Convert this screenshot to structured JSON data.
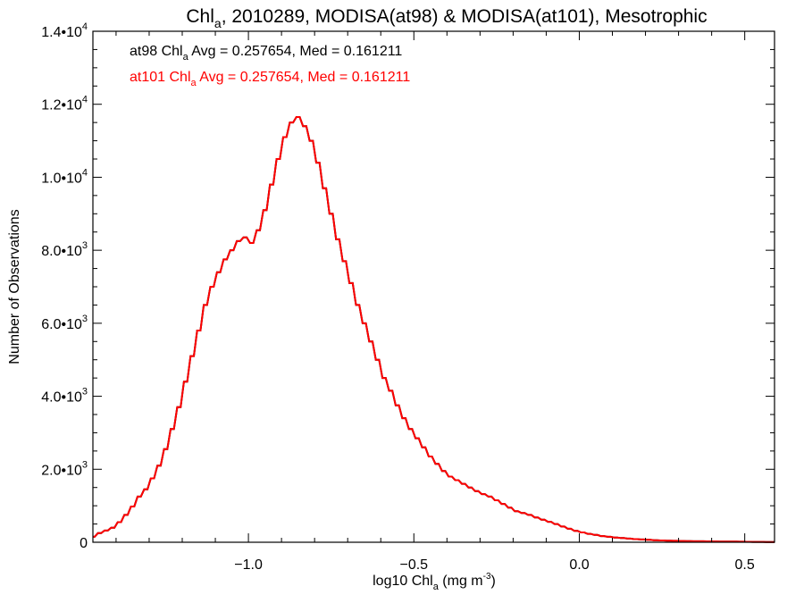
{
  "chart_data": {
    "type": "histogram-step",
    "title": {
      "pre": "Chl",
      "sub": "a",
      "post": ", 2010289, MODISA(at98) & MODISA(at101), Mesotrophic"
    },
    "xlabel": {
      "pre": "log10 Chl",
      "sub": "a",
      "post": " (mg m",
      "sup": "-3",
      "end": ")"
    },
    "ylabel": "Number of Observations",
    "xlim": [
      -1.47,
      0.59
    ],
    "ylim": [
      0,
      14000
    ],
    "x_ticks": [
      {
        "value": -1.0,
        "label": "−1.0"
      },
      {
        "value": -0.5,
        "label": "−0.5"
      },
      {
        "value": 0.0,
        "label": "0.0"
      },
      {
        "value": 0.5,
        "label": "0.5"
      }
    ],
    "y_ticks": [
      {
        "value": 0,
        "base": "0",
        "exp": ""
      },
      {
        "value": 2000,
        "base": "2.0•10",
        "exp": "3"
      },
      {
        "value": 4000,
        "base": "4.0•10",
        "exp": "3"
      },
      {
        "value": 6000,
        "base": "6.0•10",
        "exp": "3"
      },
      {
        "value": 8000,
        "base": "8.0•10",
        "exp": "3"
      },
      {
        "value": 10000,
        "base": "1.0•10",
        "exp": "4"
      },
      {
        "value": 12000,
        "base": "1.2•10",
        "exp": "4"
      },
      {
        "value": 14000,
        "base": "1.4•10",
        "exp": "4"
      }
    ],
    "annotations": [
      {
        "pre": "at98 Chl",
        "sub": "a",
        "post": " Avg = 0.257654, Med = 0.161211",
        "color": "#000000"
      },
      {
        "pre": "at101 Chl",
        "sub": "a",
        "post": " Avg = 0.257654, Med = 0.161211",
        "color": "#ff0000"
      }
    ],
    "series": [
      {
        "name": "at98",
        "color": "#000000"
      },
      {
        "name": "at101",
        "color": "#ff0000"
      }
    ],
    "bin_width": 0.01,
    "x": [
      -1.47,
      -1.45,
      -1.43,
      -1.41,
      -1.39,
      -1.37,
      -1.35,
      -1.33,
      -1.31,
      -1.29,
      -1.27,
      -1.25,
      -1.23,
      -1.21,
      -1.19,
      -1.17,
      -1.15,
      -1.13,
      -1.11,
      -1.09,
      -1.07,
      -1.05,
      -1.03,
      -1.01,
      -0.99,
      -0.97,
      -0.95,
      -0.93,
      -0.91,
      -0.89,
      -0.87,
      -0.85,
      -0.83,
      -0.81,
      -0.79,
      -0.77,
      -0.75,
      -0.73,
      -0.71,
      -0.69,
      -0.67,
      -0.65,
      -0.63,
      -0.61,
      -0.59,
      -0.57,
      -0.55,
      -0.53,
      -0.51,
      -0.49,
      -0.47,
      -0.45,
      -0.43,
      -0.41,
      -0.39,
      -0.37,
      -0.35,
      -0.33,
      -0.31,
      -0.29,
      -0.27,
      -0.25,
      -0.23,
      -0.21,
      -0.19,
      -0.17,
      -0.15,
      -0.13,
      -0.11,
      -0.09,
      -0.07,
      -0.05,
      -0.03,
      -0.01,
      0.01,
      0.03,
      0.05,
      0.07,
      0.09,
      0.11,
      0.13,
      0.15,
      0.17,
      0.19,
      0.21,
      0.23,
      0.25,
      0.27,
      0.29,
      0.31,
      0.33,
      0.35,
      0.37,
      0.39,
      0.41,
      0.43,
      0.45,
      0.47,
      0.49,
      0.51,
      0.53,
      0.55,
      0.57,
      0.59
    ],
    "counts": [
      150,
      250,
      320,
      400,
      550,
      750,
      980,
      1250,
      1450,
      1750,
      2100,
      2550,
      3100,
      3700,
      4400,
      5100,
      5800,
      6500,
      7000,
      7400,
      7750,
      8000,
      8250,
      8350,
      8200,
      8550,
      9100,
      9800,
      10500,
      11100,
      11500,
      11650,
      11400,
      11000,
      10400,
      9700,
      9000,
      8300,
      7700,
      7100,
      6500,
      6000,
      5500,
      5000,
      4500,
      4150,
      3750,
      3400,
      3100,
      2850,
      2600,
      2350,
      2150,
      1950,
      1800,
      1700,
      1600,
      1500,
      1400,
      1320,
      1250,
      1150,
      1050,
      950,
      850,
      800,
      750,
      680,
      620,
      560,
      500,
      430,
      370,
      310,
      270,
      230,
      200,
      170,
      150,
      130,
      115,
      100,
      85,
      75,
      65,
      55,
      50,
      45,
      40,
      35,
      30,
      28,
      26,
      24,
      22,
      20,
      18,
      16,
      14,
      12,
      10,
      9,
      8,
      6
    ]
  }
}
